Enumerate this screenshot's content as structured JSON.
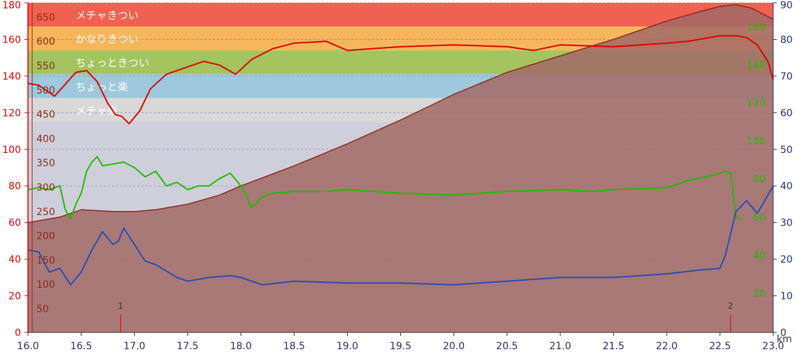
{
  "chart_data": {
    "type": "line",
    "title": "",
    "x": {
      "min": 16.0,
      "max": 23.0,
      "tick_labels": [
        "16.0",
        "16.5",
        "17.0",
        "17.5",
        "18.0",
        "18.5",
        "19.0",
        "19.5",
        "20.0",
        "20.5",
        "21.0",
        "21.5",
        "22.0",
        "22.5",
        "23.0"
      ],
      "unit_label": "km"
    },
    "axes": {
      "left_red": {
        "min": 0,
        "max": 180,
        "ticks": [
          "0",
          "20",
          "40",
          "60",
          "80",
          "100",
          "120",
          "140",
          "160",
          "180"
        ],
        "color": "#dd0000"
      },
      "inner_brown": {
        "ticks": [
          "50",
          "100",
          "150",
          "200",
          "250",
          "300",
          "350",
          "400",
          "450",
          "500",
          "550",
          "600",
          "650"
        ],
        "color": "#8b2a1a"
      },
      "right_green": {
        "ticks": [
          "20",
          "40",
          "60",
          "80",
          "100",
          "120",
          "140",
          "160"
        ],
        "color": "#22bb00"
      },
      "right_navy": {
        "min": 0,
        "max": 90,
        "ticks": [
          "0",
          "10",
          "20",
          "30",
          "40",
          "50",
          "60",
          "70",
          "80",
          "90"
        ],
        "color": "#1f2d6e"
      }
    },
    "zones": [
      {
        "label": "メチャきつい",
        "from": 167,
        "to": 180,
        "color": "#f0614f"
      },
      {
        "label": "かなりきつい",
        "from": 154,
        "to": 167,
        "color": "#f6b75c"
      },
      {
        "label": "ちょっときつい",
        "from": 141,
        "to": 154,
        "color": "#a3c45e"
      },
      {
        "label": "ちょっと楽",
        "from": 128,
        "to": 141,
        "color": "#9ec8dc"
      },
      {
        "label": "メチャ楽",
        "from": 115,
        "to": 128,
        "color": "#d8d8d8"
      },
      {
        "label": "",
        "from": 0,
        "to": 115,
        "color": "#cfcfdc"
      }
    ],
    "series": [
      {
        "key": "elevation",
        "axis": "left_red",
        "color": "#8b2a1a",
        "fill": "#a26a66",
        "x": [
          16.0,
          16.3,
          16.5,
          16.8,
          17.0,
          17.2,
          17.5,
          17.8,
          18.0,
          18.5,
          19.0,
          19.5,
          20.0,
          20.5,
          21.0,
          21.5,
          22.0,
          22.3,
          22.5,
          22.65,
          22.8,
          23.0
        ],
        "values": [
          60,
          63,
          67,
          66,
          66,
          67,
          70,
          75,
          80,
          91,
          103,
          116,
          130,
          142,
          151,
          160,
          170,
          175,
          178,
          179,
          177,
          171
        ]
      },
      {
        "key": "heart_rate",
        "axis": "left_red",
        "color": "#e00000",
        "x": [
          16.0,
          16.1,
          16.25,
          16.45,
          16.55,
          16.65,
          16.75,
          16.82,
          16.88,
          16.95,
          17.05,
          17.15,
          17.3,
          17.5,
          17.65,
          17.8,
          17.95,
          18.1,
          18.3,
          18.5,
          18.8,
          19.0,
          19.5,
          20.0,
          20.5,
          20.75,
          21.0,
          21.5,
          22.0,
          22.2,
          22.5,
          22.65,
          22.75,
          22.85,
          22.95,
          23.0
        ],
        "values": [
          136,
          135,
          129,
          142,
          143,
          137,
          125,
          119,
          118,
          114,
          121,
          133,
          141,
          145,
          148,
          146,
          141,
          149,
          155,
          158,
          159,
          154,
          156,
          157,
          156,
          154,
          157,
          156,
          158,
          159,
          162,
          162,
          161,
          157,
          148,
          138
        ]
      },
      {
        "key": "cadence",
        "axis": "left_red",
        "color": "#22bb00",
        "x": [
          16.0,
          16.1,
          16.2,
          16.3,
          16.35,
          16.4,
          16.45,
          16.5,
          16.55,
          16.6,
          16.65,
          16.7,
          16.8,
          16.9,
          17.0,
          17.1,
          17.2,
          17.3,
          17.4,
          17.5,
          17.6,
          17.7,
          17.8,
          17.9,
          18.0,
          18.05,
          18.1,
          18.2,
          18.3,
          18.5,
          18.8,
          19.0,
          19.5,
          20.0,
          20.5,
          21.0,
          21.3,
          21.5,
          22.0,
          22.2,
          22.45,
          22.55,
          22.6,
          22.65,
          22.7
        ],
        "values": [
          78,
          79,
          78,
          80,
          67,
          62,
          70,
          76,
          88,
          93,
          96,
          91,
          92,
          93,
          90,
          85,
          88,
          80,
          82,
          78,
          80,
          80,
          84,
          87,
          80,
          75,
          68,
          74,
          76,
          77,
          77,
          78,
          76,
          75,
          77,
          78,
          77,
          78,
          79,
          83,
          86,
          88,
          87,
          63,
          62
        ]
      },
      {
        "key": "pace",
        "axis": "left_red",
        "color": "#2a4bb5",
        "x": [
          16.0,
          16.1,
          16.2,
          16.3,
          16.4,
          16.5,
          16.6,
          16.7,
          16.8,
          16.85,
          16.9,
          17.0,
          17.1,
          17.2,
          17.4,
          17.5,
          17.7,
          17.9,
          18.0,
          18.2,
          18.5,
          19.0,
          19.5,
          20.0,
          20.5,
          21.0,
          21.5,
          22.0,
          22.3,
          22.5,
          22.55,
          22.65,
          22.75,
          22.85,
          22.95,
          23.0
        ],
        "values": [
          45,
          44,
          33,
          35,
          26,
          33,
          45,
          55,
          48,
          50,
          57,
          48,
          39,
          37,
          30,
          28,
          30,
          31,
          30,
          26,
          28,
          27,
          27,
          26,
          28,
          30,
          30,
          32,
          34,
          35,
          42,
          66,
          72,
          65,
          75,
          80
        ]
      }
    ],
    "markers": [
      {
        "label": "1",
        "x": 16.87
      },
      {
        "label": "2",
        "x": 22.6
      }
    ],
    "grid": true
  }
}
